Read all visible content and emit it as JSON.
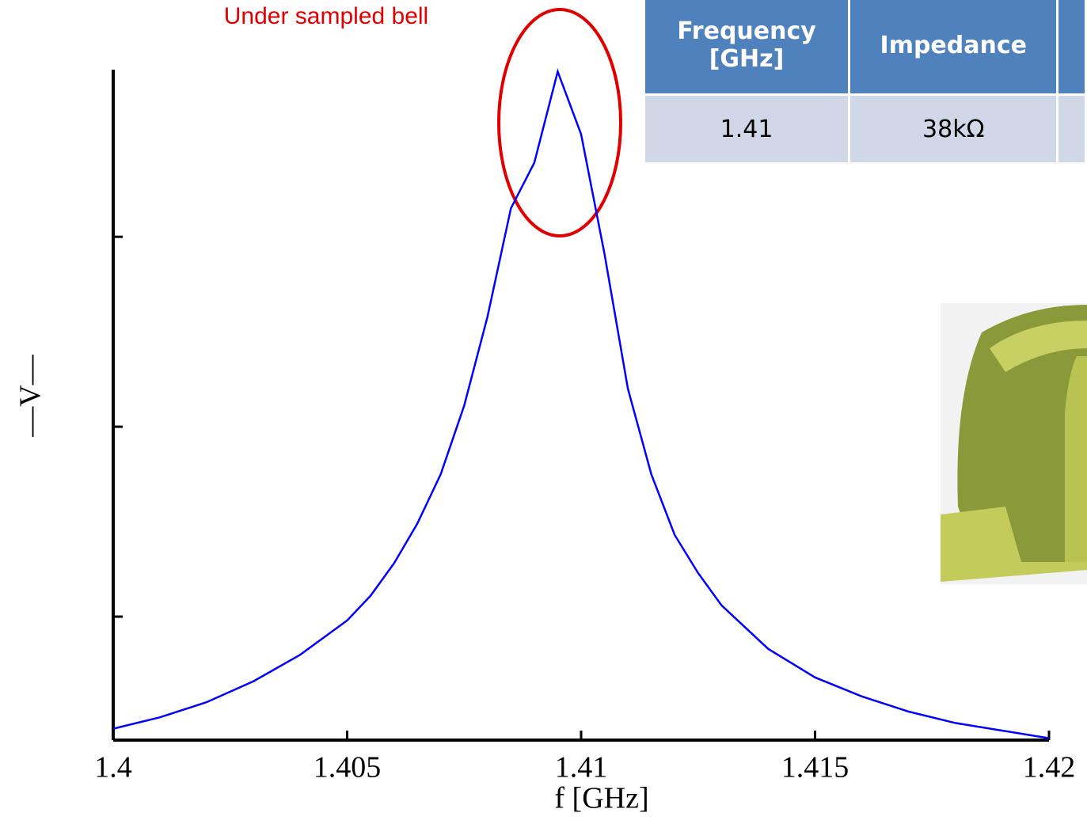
{
  "chart_data": {
    "type": "line",
    "annotation": "Under sampled bell",
    "xlabel": "f [GHz]",
    "ylabel": "—V—",
    "x": [
      1.4,
      1.401,
      1.402,
      1.403,
      1.404,
      1.405,
      1.4055,
      1.406,
      1.4065,
      1.407,
      1.4075,
      1.408,
      1.4085,
      1.409,
      1.4095,
      1.41,
      1.4105,
      1.411,
      1.4115,
      1.412,
      1.4125,
      1.413,
      1.414,
      1.415,
      1.416,
      1.417,
      1.418,
      1.42
    ],
    "values": [
      0.41,
      0.47,
      0.55,
      0.66,
      0.8,
      0.98,
      1.11,
      1.28,
      1.49,
      1.75,
      2.11,
      2.58,
      3.15,
      3.39,
      3.87,
      3.54,
      2.91,
      2.2,
      1.75,
      1.43,
      1.23,
      1.06,
      0.83,
      0.68,
      0.58,
      0.5,
      0.44,
      0.36
    ],
    "color": "#0000ff",
    "xlim": [
      1.4,
      1.42
    ],
    "xticks": [
      1.4,
      1.405,
      1.41,
      1.415,
      1.42
    ],
    "ylim": [
      0.35,
      3.88
    ],
    "yticks": [
      1,
      2,
      3
    ]
  },
  "table": {
    "header": [
      "Frequency [GHz]",
      "Impedance"
    ],
    "rows": [
      [
        "1.41",
        "38kΩ"
      ]
    ]
  }
}
